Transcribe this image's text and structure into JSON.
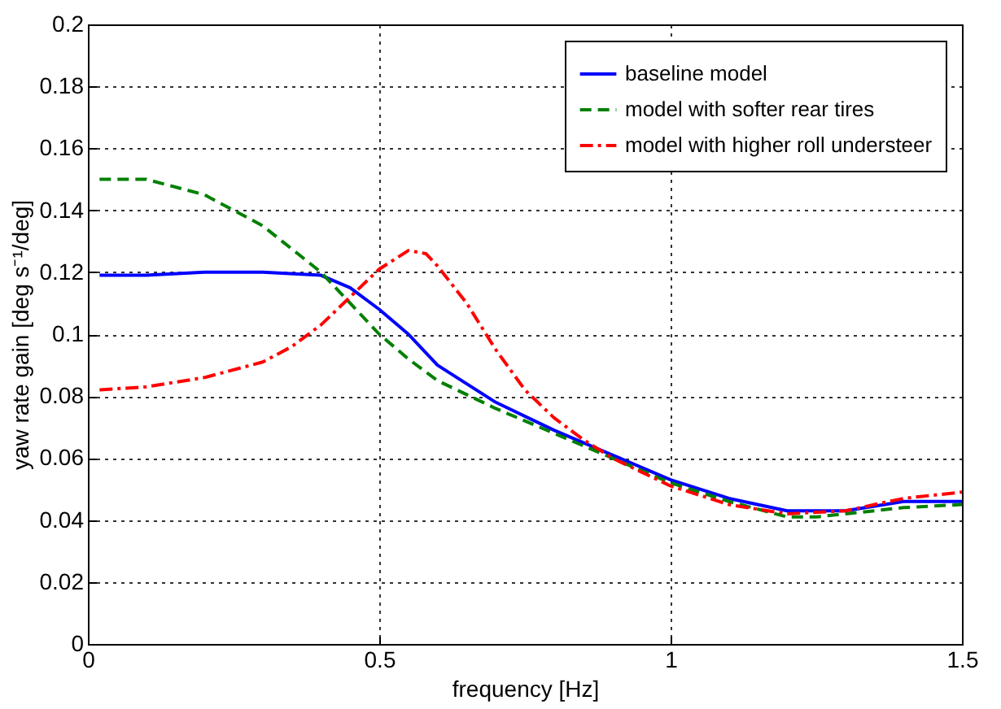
{
  "chart_data": {
    "type": "line",
    "xlabel": "frequency [Hz]",
    "ylabel": "yaw rate gain [deg s⁻¹/deg]",
    "xlim": [
      0,
      1.5
    ],
    "xticks": [
      0,
      0.5,
      1,
      1.5
    ],
    "ylim": [
      0,
      0.2
    ],
    "yticks": [
      0,
      0.02,
      0.04,
      0.06,
      0.08,
      0.1,
      0.12,
      0.14,
      0.16,
      0.18,
      0.2
    ],
    "grid": true,
    "legend": "top right",
    "marker": "none",
    "series": [
      {
        "name": "baseline model",
        "color": "#0000ff",
        "line_style": "solid",
        "x": [
          0.02,
          0.1,
          0.2,
          0.3,
          0.4,
          0.45,
          0.5,
          0.55,
          0.6,
          0.7,
          0.8,
          0.9,
          1.0,
          1.1,
          1.2,
          1.3,
          1.4,
          1.5
        ],
        "values": [
          0.119,
          0.119,
          0.12,
          0.12,
          0.119,
          0.115,
          0.108,
          0.1,
          0.09,
          0.078,
          0.069,
          0.061,
          0.053,
          0.047,
          0.043,
          0.043,
          0.046,
          0.046
        ]
      },
      {
        "name": "model with softer rear tires",
        "color": "#008000",
        "line_style": "dashed",
        "x": [
          0.02,
          0.1,
          0.2,
          0.3,
          0.4,
          0.45,
          0.5,
          0.55,
          0.6,
          0.7,
          0.8,
          0.9,
          1.0,
          1.1,
          1.2,
          1.25,
          1.3,
          1.4,
          1.5
        ],
        "values": [
          0.15,
          0.15,
          0.145,
          0.135,
          0.12,
          0.11,
          0.1,
          0.092,
          0.085,
          0.076,
          0.068,
          0.06,
          0.052,
          0.046,
          0.041,
          0.041,
          0.042,
          0.044,
          0.045
        ]
      },
      {
        "name": "model with higher roll understeer",
        "color": "#ff0000",
        "line_style": "dashdot",
        "x": [
          0.02,
          0.1,
          0.2,
          0.3,
          0.35,
          0.4,
          0.45,
          0.5,
          0.55,
          0.58,
          0.6,
          0.65,
          0.7,
          0.75,
          0.8,
          0.85,
          0.9,
          1.0,
          1.1,
          1.2,
          1.3,
          1.4,
          1.5
        ],
        "values": [
          0.082,
          0.083,
          0.086,
          0.091,
          0.096,
          0.103,
          0.112,
          0.121,
          0.127,
          0.126,
          0.122,
          0.11,
          0.095,
          0.082,
          0.073,
          0.066,
          0.06,
          0.051,
          0.045,
          0.042,
          0.043,
          0.047,
          0.049
        ]
      }
    ]
  }
}
